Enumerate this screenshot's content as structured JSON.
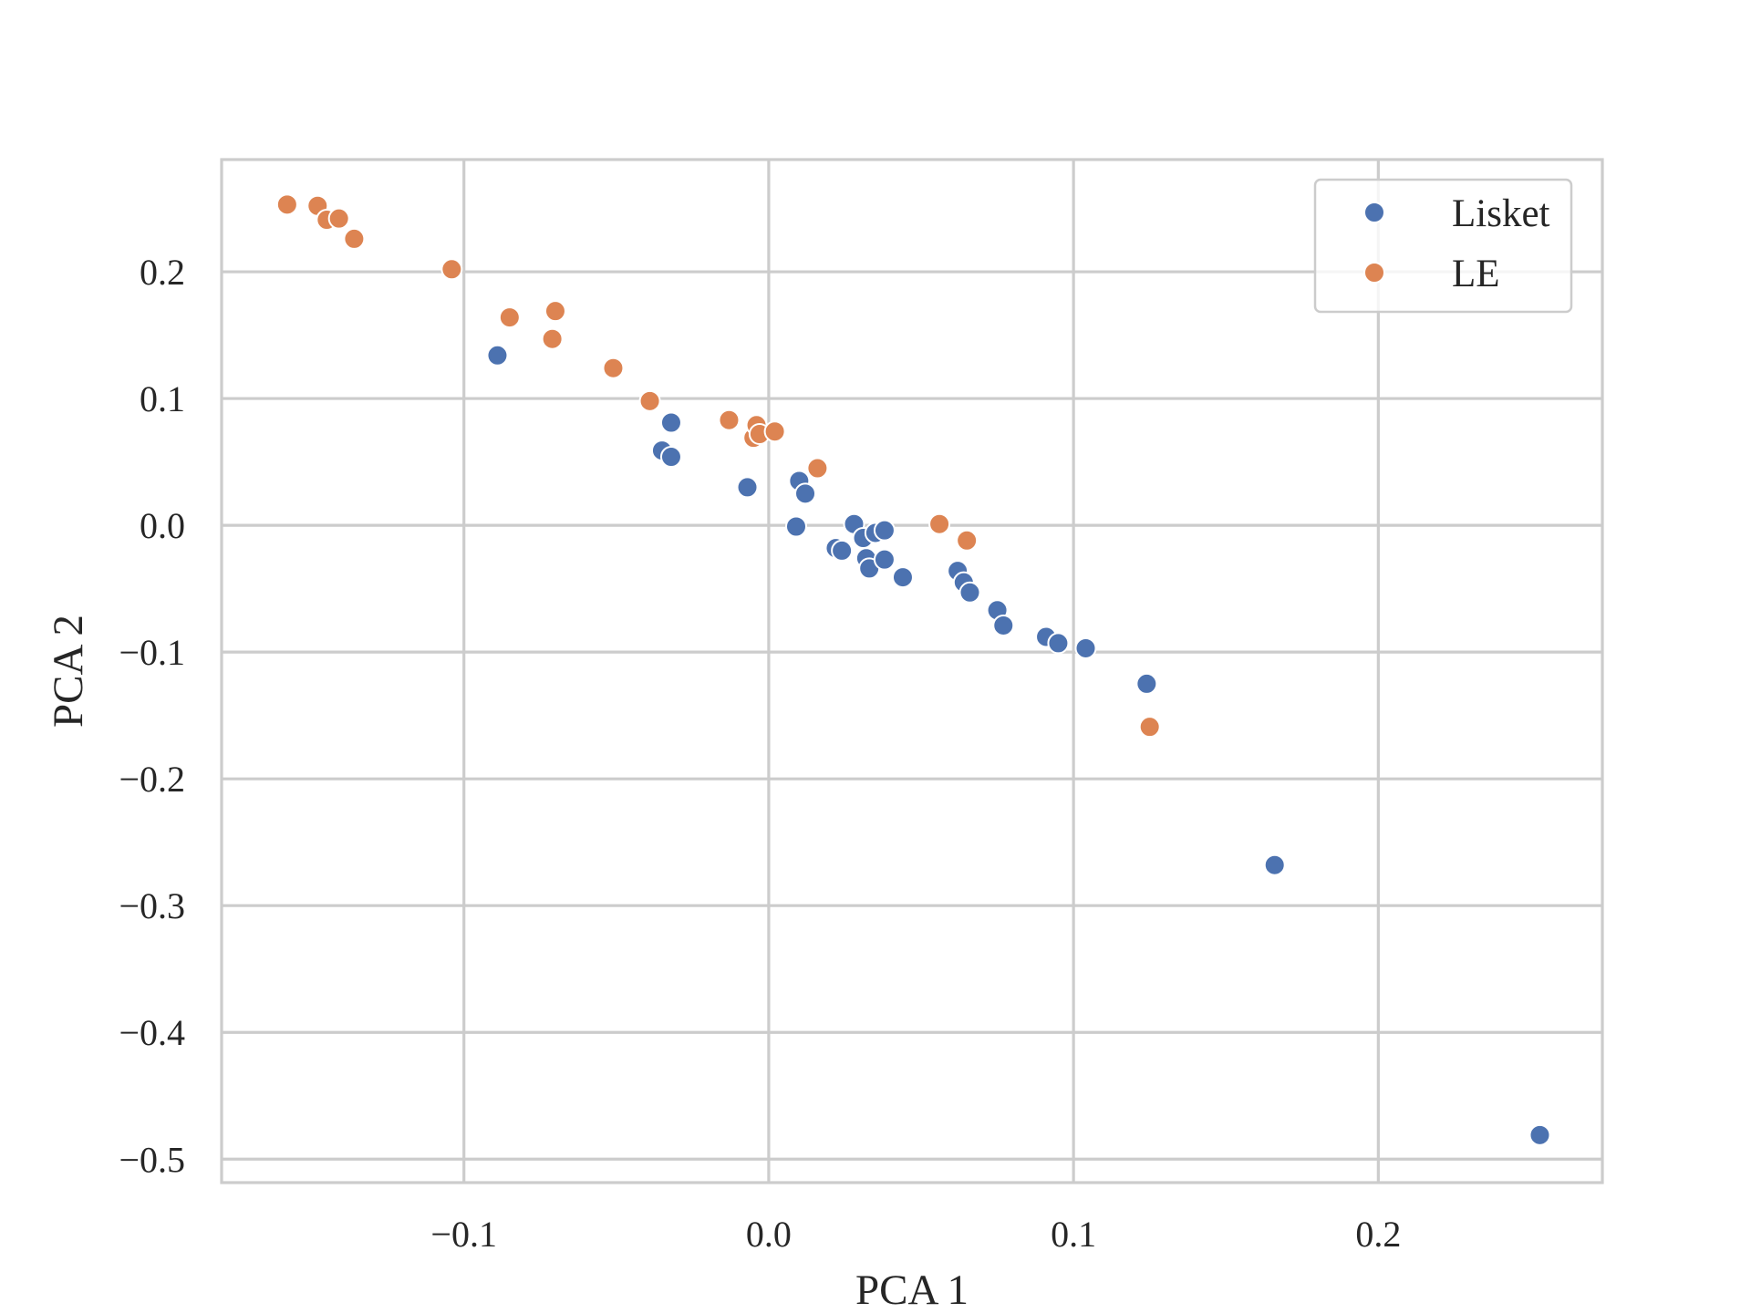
{
  "chart_data": {
    "type": "scatter",
    "xlabel": "PCA 1",
    "ylabel": "PCA 2",
    "xlim": [
      -0.1795,
      0.2735
    ],
    "ylim": [
      -0.5185,
      0.2885
    ],
    "xticks": [
      -0.1,
      0.0,
      0.1,
      0.2
    ],
    "xtick_labels": [
      "−0.1",
      "0.0",
      "0.1",
      "0.2"
    ],
    "yticks": [
      -0.5,
      -0.4,
      -0.3,
      -0.2,
      -0.1,
      0.0,
      0.1,
      0.2
    ],
    "ytick_labels": [
      "−0.5",
      "−0.4",
      "−0.3",
      "−0.2",
      "−0.1",
      "0.0",
      "0.1",
      "0.2"
    ],
    "grid": true,
    "legend_position": "top-right",
    "series": [
      {
        "name": "Lisket",
        "color": "#4c72b0",
        "points": [
          [
            -0.089,
            0.134
          ],
          [
            -0.035,
            0.059
          ],
          [
            -0.032,
            0.054
          ],
          [
            -0.032,
            0.081
          ],
          [
            -0.007,
            0.03
          ],
          [
            0.009,
            -0.001
          ],
          [
            0.01,
            0.035
          ],
          [
            0.012,
            0.025
          ],
          [
            0.022,
            -0.018
          ],
          [
            0.024,
            -0.02
          ],
          [
            0.028,
            0.001
          ],
          [
            0.031,
            -0.01
          ],
          [
            0.032,
            -0.026
          ],
          [
            0.033,
            -0.034
          ],
          [
            0.035,
            -0.006
          ],
          [
            0.038,
            -0.004
          ],
          [
            0.038,
            -0.027
          ],
          [
            0.044,
            -0.041
          ],
          [
            0.062,
            -0.036
          ],
          [
            0.064,
            -0.045
          ],
          [
            0.066,
            -0.053
          ],
          [
            0.075,
            -0.067
          ],
          [
            0.077,
            -0.079
          ],
          [
            0.091,
            -0.088
          ],
          [
            0.095,
            -0.093
          ],
          [
            0.104,
            -0.097
          ],
          [
            0.124,
            -0.125
          ],
          [
            0.166,
            -0.268
          ],
          [
            0.253,
            -0.481
          ]
        ]
      },
      {
        "name": "LE",
        "color": "#dd8452",
        "points": [
          [
            -0.158,
            0.253
          ],
          [
            -0.148,
            0.252
          ],
          [
            -0.145,
            0.241
          ],
          [
            -0.141,
            0.242
          ],
          [
            -0.136,
            0.226
          ],
          [
            -0.104,
            0.202
          ],
          [
            -0.085,
            0.164
          ],
          [
            -0.071,
            0.147
          ],
          [
            -0.07,
            0.169
          ],
          [
            -0.051,
            0.124
          ],
          [
            -0.039,
            0.098
          ],
          [
            -0.013,
            0.083
          ],
          [
            -0.005,
            0.069
          ],
          [
            -0.004,
            0.079
          ],
          [
            -0.003,
            0.072
          ],
          [
            0.002,
            0.074
          ],
          [
            0.016,
            0.045
          ],
          [
            0.056,
            0.001
          ],
          [
            0.065,
            -0.012
          ],
          [
            0.125,
            -0.159
          ]
        ]
      }
    ]
  }
}
